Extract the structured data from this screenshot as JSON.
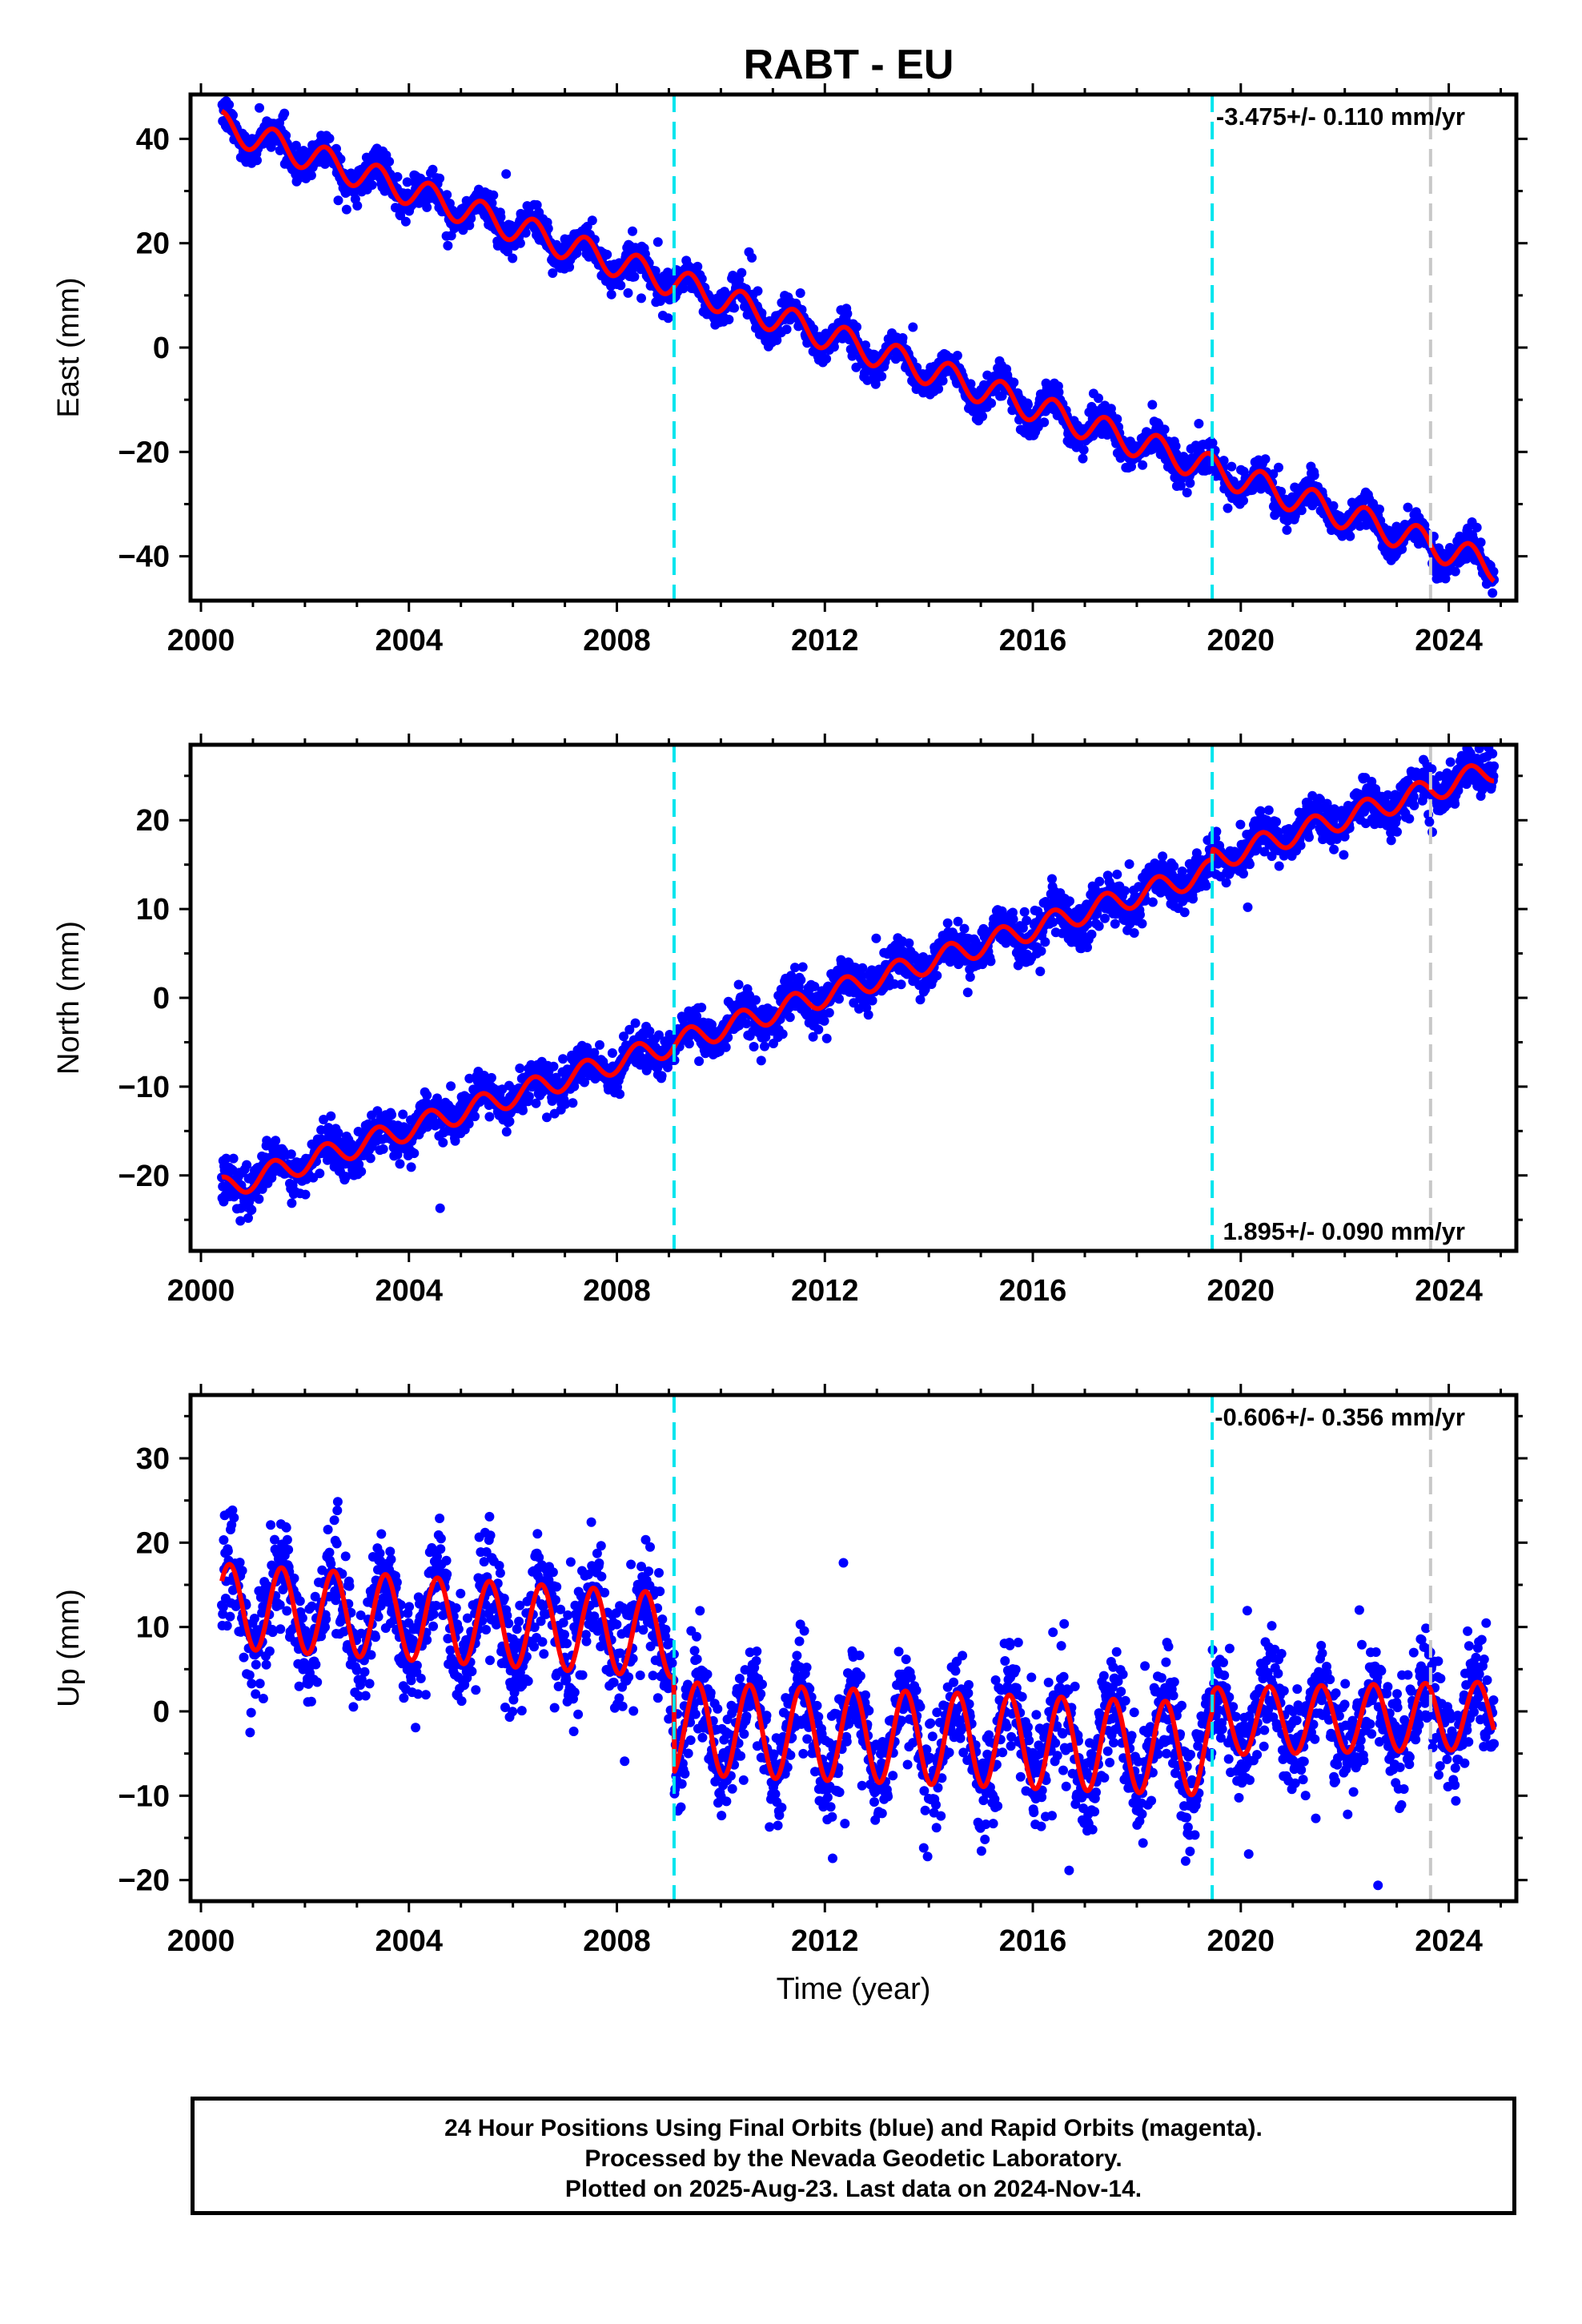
{
  "title": "RABT - EU",
  "colors": {
    "points": "#0000ff",
    "model": "#ff0000",
    "break_line": "#00e5ee",
    "gray_line": "#c8c8c8",
    "frame": "#000000"
  },
  "footer": {
    "line1": "24 Hour Positions Using Final Orbits (blue) and Rapid Orbits (magenta).",
    "line2": "Processed by the Nevada Geodetic Laboratory.",
    "line3": "Plotted on 2025-Aug-23. Last data on 2024-Nov-14."
  },
  "chart_data": [
    {
      "type": "scatter",
      "panel": "east",
      "title": "RABT - EU",
      "xlabel": "",
      "ylabel": "East (mm)",
      "xlim": [
        1999.8,
        2025.3
      ],
      "ylim": [
        -48.5,
        48.5
      ],
      "xticks": [
        2000,
        2004,
        2008,
        2012,
        2016,
        2020,
        2024
      ],
      "yticks": [
        -40,
        -20,
        0,
        20,
        40
      ],
      "rate_label": "-3.475+/- 0.110 mm/yr",
      "rate_position": "top-right",
      "data_range_x": [
        2000.4,
        2024.87
      ],
      "trend_start": 42.5,
      "trend_end": -42.0,
      "seasonal_amplitude": 2.8,
      "scatter_noise": 1.6,
      "offsets": [],
      "break_lines": [
        2009.1,
        2019.45
      ],
      "gray_lines": [
        2023.65
      ],
      "series": [
        {
          "name": "Final Orbits",
          "role": "points"
        },
        {
          "name": "Model",
          "role": "model"
        }
      ]
    },
    {
      "type": "scatter",
      "panel": "north",
      "xlabel": "",
      "ylabel": "North (mm)",
      "xlim": [
        1999.8,
        2025.3
      ],
      "ylim": [
        -28.5,
        28.5
      ],
      "xticks": [
        2000,
        2004,
        2008,
        2012,
        2016,
        2020,
        2024
      ],
      "yticks": [
        -20,
        -10,
        0,
        10,
        20
      ],
      "rate_label": "1.895+/- 0.090 mm/yr",
      "rate_position": "bottom-right",
      "data_range_x": [
        2000.4,
        2024.87
      ],
      "trend_start": -21.5,
      "trend_end": 24.5,
      "seasonal_amplitude": 1.3,
      "scatter_noise": 1.2,
      "offsets": [
        {
          "x": 2019.45,
          "dy": 1.2
        }
      ],
      "break_lines": [
        2009.1,
        2019.45
      ],
      "gray_lines": [
        2023.65
      ],
      "series": [
        {
          "name": "Final Orbits",
          "role": "points"
        },
        {
          "name": "Model",
          "role": "model"
        }
      ]
    },
    {
      "type": "scatter",
      "panel": "up",
      "xlabel": "Time (year)",
      "ylabel": "Up (mm)",
      "xlim": [
        1999.8,
        2025.3
      ],
      "ylim": [
        -22.5,
        37.5
      ],
      "xticks": [
        2000,
        2004,
        2008,
        2012,
        2016,
        2020,
        2024
      ],
      "yticks": [
        -20,
        -10,
        0,
        10,
        20,
        30
      ],
      "rate_label": "-0.606+/- 0.356 mm/yr",
      "rate_position": "top-right",
      "data_range_x": [
        2000.4,
        2024.87
      ],
      "segments": [
        {
          "x0": 2000.4,
          "x1": 2009.1,
          "y0": 12.5,
          "y1": 9.0,
          "amp": 5.0
        },
        {
          "x0": 2009.1,
          "x1": 2019.45,
          "y0": -2.0,
          "y1": -4.5,
          "amp": 5.5
        },
        {
          "x0": 2019.45,
          "x1": 2024.87,
          "y0": -1.2,
          "y1": -0.5,
          "amp": 4.0
        }
      ],
      "scatter_noise": 3.2,
      "break_lines": [
        2009.1,
        2019.45
      ],
      "gray_lines": [
        2023.65
      ],
      "series": [
        {
          "name": "Final Orbits",
          "role": "points"
        },
        {
          "name": "Model",
          "role": "model"
        }
      ]
    }
  ]
}
